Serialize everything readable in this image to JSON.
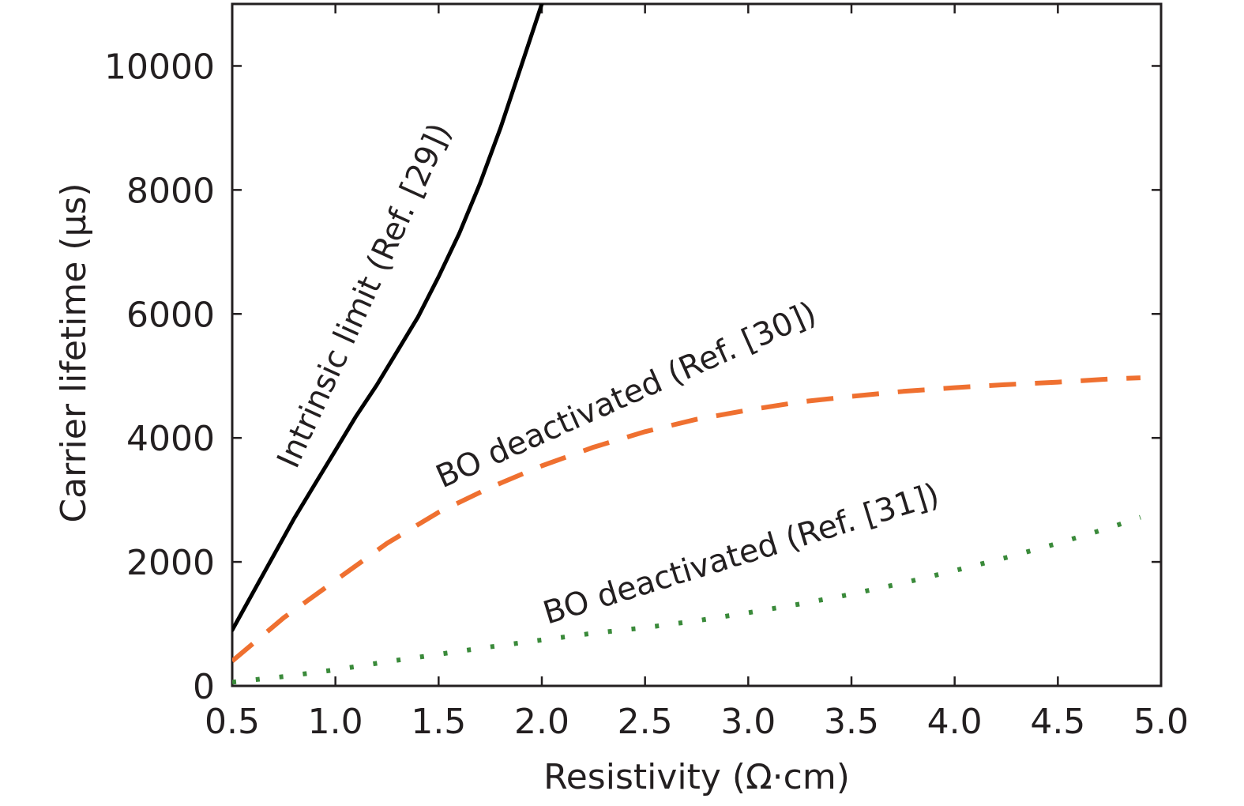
{
  "chart_data": {
    "type": "line",
    "title": "",
    "xlabel": "Resistivity (Ω·cm)",
    "ylabel": "Carrier lifetime (μs)",
    "xlim": [
      0.5,
      5.0
    ],
    "ylim": [
      0,
      11000
    ],
    "xticks": [
      0.5,
      1.0,
      1.5,
      2.0,
      2.5,
      3.0,
      3.5,
      4.0,
      4.5,
      5.0
    ],
    "xtick_labels": [
      "0.5",
      "1.0",
      "1.5",
      "2.0",
      "2.5",
      "3.0",
      "3.5",
      "4.0",
      "4.5",
      "5.0"
    ],
    "yticks": [
      0,
      2000,
      4000,
      6000,
      8000,
      10000
    ],
    "ytick_labels": [
      "0",
      "2000",
      "4000",
      "6000",
      "8000",
      "10000"
    ],
    "grid": false,
    "series": [
      {
        "name": "Intrinsic limit (Ref. [29])",
        "color": "#000000",
        "style": "solid",
        "x": [
          0.5,
          0.6,
          0.7,
          0.8,
          0.9,
          1.0,
          1.1,
          1.2,
          1.3,
          1.4,
          1.5,
          1.6,
          1.7,
          1.8,
          1.9,
          2.0
        ],
        "y": [
          900,
          1500,
          2100,
          2700,
          3250,
          3800,
          4350,
          4850,
          5400,
          5950,
          6600,
          7300,
          8100,
          9000,
          10000,
          11000
        ]
      },
      {
        "name": "BO deactivated (Ref. [30])",
        "color": "#ef7030",
        "style": "dashed",
        "x": [
          0.5,
          0.75,
          1.0,
          1.25,
          1.5,
          1.75,
          2.0,
          2.25,
          2.5,
          2.75,
          3.0,
          3.25,
          3.5,
          3.75,
          4.0,
          4.25,
          4.5,
          4.75,
          4.9
        ],
        "y": [
          400,
          1100,
          1700,
          2300,
          2800,
          3200,
          3550,
          3850,
          4100,
          4300,
          4450,
          4580,
          4670,
          4750,
          4810,
          4860,
          4900,
          4950,
          4970
        ]
      },
      {
        "name": "BO deactivated (Ref. [31])",
        "color": "#3a8a3a",
        "style": "dotted",
        "x": [
          0.5,
          0.75,
          1.0,
          1.25,
          1.5,
          1.75,
          2.0,
          2.25,
          2.5,
          2.75,
          3.0,
          3.25,
          3.5,
          3.75,
          4.0,
          4.25,
          4.5,
          4.75,
          4.9
        ],
        "y": [
          60,
          150,
          260,
          390,
          510,
          630,
          740,
          850,
          940,
          1050,
          1180,
          1320,
          1480,
          1660,
          1860,
          2070,
          2300,
          2550,
          2720
        ]
      }
    ]
  }
}
